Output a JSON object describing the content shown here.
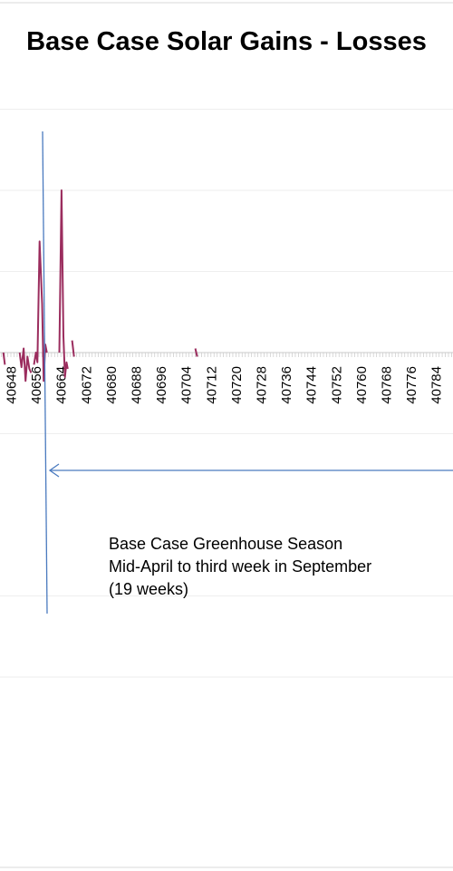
{
  "chart_data": {
    "type": "line",
    "title": "Base Case Solar Gains - Losses",
    "xlabel": "",
    "ylabel": "",
    "x_ticks": [
      40648,
      40656,
      40664,
      40672,
      40680,
      40688,
      40696,
      40704,
      40712,
      40720,
      40728,
      40736,
      40744,
      40752,
      40760,
      40768,
      40776,
      40784
    ],
    "series": [
      {
        "color": "#9b2d5e",
        "segments": [
          {
            "x": [
              40645.6,
              40646.1
            ],
            "y": [
              0.0,
              -0.15
            ]
          },
          {
            "x": [
              40650.8,
              40651.4,
              40652.1,
              40652.7,
              40653.3,
              40653.9,
              40654.5
            ],
            "y": [
              0.0,
              -0.18,
              0.05,
              -0.35,
              -0.05,
              -0.2,
              -0.25
            ]
          },
          {
            "x": [
              40655.4,
              40656.0,
              40656.5,
              40657.2,
              40658.0,
              40658.5,
              40659.0,
              40659.5
            ],
            "y": [
              -0.15,
              0.0,
              -0.12,
              1.37,
              0.6,
              -0.35,
              0.1,
              0.0
            ]
          },
          {
            "x": [
              40663.5,
              40664.2,
              40664.8,
              40665.3,
              40665.8,
              40666.2
            ],
            "y": [
              0.0,
              2.0,
              0.2,
              -0.3,
              -0.12,
              -0.2
            ]
          },
          {
            "x": [
              40667.6,
              40668.2
            ],
            "y": [
              0.15,
              -0.05
            ]
          },
          {
            "x": [
              40707.0,
              40707.6
            ],
            "y": [
              0.05,
              -0.05
            ]
          }
        ]
      }
    ],
    "annotations": [
      "Base Case Greenhouse Season",
      "Mid-April to third week in September",
      "(19 weeks)"
    ],
    "grid": true,
    "legend": "none"
  }
}
